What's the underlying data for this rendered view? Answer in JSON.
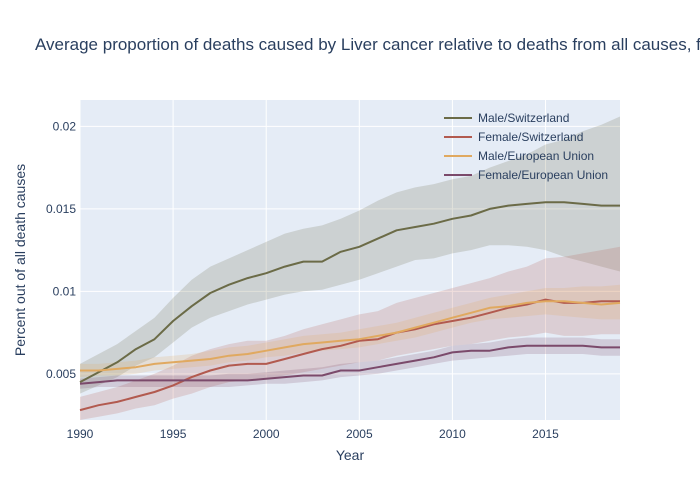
{
  "chart_data": {
    "type": "line",
    "title": "Average proportion of deaths caused by Liver cancer relative to deaths from all causes, f",
    "xlabel": "Year",
    "ylabel": "Percent out of all death causes",
    "xlim": [
      1990,
      2019
    ],
    "ylim": [
      0.0022,
      0.0216
    ],
    "x_ticks": [
      1990,
      1995,
      2000,
      2005,
      2010,
      2015
    ],
    "y_ticks": [
      0.005,
      0.01,
      0.015,
      0.02
    ],
    "y_tick_labels": [
      "0.005",
      "0.01",
      "0.015",
      "0.02"
    ],
    "grid": true,
    "legend_position": "top-right",
    "x": [
      1990,
      1991,
      1992,
      1993,
      1994,
      1995,
      1996,
      1997,
      1998,
      1999,
      2000,
      2001,
      2002,
      2003,
      2004,
      2005,
      2006,
      2007,
      2008,
      2009,
      2010,
      2011,
      2012,
      2013,
      2014,
      2015,
      2016,
      2017,
      2018,
      2019
    ],
    "series": [
      {
        "name": "Male/Switzerland",
        "color": "#6b6b47",
        "values": [
          0.0045,
          0.0051,
          0.0057,
          0.0065,
          0.0071,
          0.0082,
          0.0091,
          0.0099,
          0.0104,
          0.0108,
          0.0111,
          0.0115,
          0.0118,
          0.0118,
          0.0124,
          0.0127,
          0.0132,
          0.0137,
          0.0139,
          0.0141,
          0.0144,
          0.0146,
          0.015,
          0.0152,
          0.0153,
          0.0154,
          0.0154,
          0.0153,
          0.0152,
          0.0152
        ],
        "lower": [
          0.0038,
          0.0043,
          0.0048,
          0.0055,
          0.006,
          0.0069,
          0.0078,
          0.0084,
          0.0088,
          0.0092,
          0.0095,
          0.0098,
          0.01,
          0.0101,
          0.0104,
          0.0107,
          0.0111,
          0.0115,
          0.0119,
          0.012,
          0.0123,
          0.0125,
          0.0128,
          0.0128,
          0.0127,
          0.0125,
          0.0121,
          0.0118,
          0.0115,
          0.0112
        ],
        "upper": [
          0.0056,
          0.0062,
          0.0068,
          0.0076,
          0.0084,
          0.0096,
          0.0107,
          0.0115,
          0.012,
          0.0125,
          0.013,
          0.0135,
          0.0138,
          0.014,
          0.0144,
          0.0149,
          0.0155,
          0.016,
          0.0163,
          0.0165,
          0.0168,
          0.017,
          0.0175,
          0.0179,
          0.0183,
          0.0189,
          0.0192,
          0.0197,
          0.0201,
          0.0206
        ]
      },
      {
        "name": "Female/Switzerland",
        "color": "#b25a4f",
        "values": [
          0.0028,
          0.0031,
          0.0033,
          0.0036,
          0.0039,
          0.0043,
          0.0048,
          0.0052,
          0.0055,
          0.0056,
          0.0056,
          0.0059,
          0.0062,
          0.0065,
          0.0067,
          0.007,
          0.0071,
          0.0075,
          0.0077,
          0.008,
          0.0082,
          0.0084,
          0.0087,
          0.009,
          0.0092,
          0.0095,
          0.0093,
          0.0093,
          0.0094,
          0.0094
        ],
        "lower": [
          0.0022,
          0.0024,
          0.0026,
          0.0029,
          0.0031,
          0.0035,
          0.0038,
          0.0042,
          0.0045,
          0.0046,
          0.0047,
          0.0049,
          0.0051,
          0.0053,
          0.0055,
          0.0057,
          0.0058,
          0.0061,
          0.0063,
          0.0065,
          0.0067,
          0.0068,
          0.007,
          0.0072,
          0.0073,
          0.0075,
          0.0073,
          0.0073,
          0.0074,
          0.0074
        ],
        "upper": [
          0.0036,
          0.0039,
          0.0042,
          0.0046,
          0.005,
          0.0055,
          0.0061,
          0.0065,
          0.0068,
          0.007,
          0.007,
          0.0073,
          0.0077,
          0.008,
          0.0083,
          0.0086,
          0.0088,
          0.0093,
          0.0096,
          0.0099,
          0.0102,
          0.0105,
          0.0108,
          0.0112,
          0.0115,
          0.012,
          0.0121,
          0.0123,
          0.0125,
          0.0127
        ]
      },
      {
        "name": "Male/European Union",
        "color": "#e0a960",
        "values": [
          0.0052,
          0.0052,
          0.0053,
          0.0054,
          0.0056,
          0.0057,
          0.0058,
          0.0059,
          0.0061,
          0.0062,
          0.0064,
          0.0066,
          0.0068,
          0.0069,
          0.007,
          0.0071,
          0.0073,
          0.0075,
          0.0078,
          0.0081,
          0.0084,
          0.0087,
          0.009,
          0.0091,
          0.0093,
          0.0094,
          0.0094,
          0.0093,
          0.0092,
          0.0093
        ],
        "lower": [
          0.0048,
          0.0049,
          0.0049,
          0.005,
          0.0052,
          0.0053,
          0.0054,
          0.0055,
          0.0057,
          0.0058,
          0.006,
          0.0061,
          0.0063,
          0.0064,
          0.0065,
          0.0066,
          0.0068,
          0.007,
          0.0072,
          0.0075,
          0.0078,
          0.0081,
          0.0083,
          0.0084,
          0.0085,
          0.0086,
          0.0085,
          0.0084,
          0.0083,
          0.0083
        ],
        "upper": [
          0.0056,
          0.0056,
          0.0057,
          0.0058,
          0.006,
          0.0061,
          0.0062,
          0.0064,
          0.0066,
          0.0067,
          0.0069,
          0.0071,
          0.0073,
          0.0074,
          0.0075,
          0.0077,
          0.0079,
          0.0081,
          0.0084,
          0.0087,
          0.009,
          0.0093,
          0.0096,
          0.0098,
          0.01,
          0.0102,
          0.0102,
          0.0103,
          0.0103,
          0.0104
        ]
      },
      {
        "name": "Female/European Union",
        "color": "#7b4a6b",
        "values": [
          0.0044,
          0.0045,
          0.0046,
          0.0046,
          0.0046,
          0.0046,
          0.0046,
          0.0046,
          0.0046,
          0.0046,
          0.0047,
          0.0048,
          0.0049,
          0.0049,
          0.0052,
          0.0052,
          0.0054,
          0.0056,
          0.0058,
          0.006,
          0.0063,
          0.0064,
          0.0064,
          0.0066,
          0.0067,
          0.0067,
          0.0067,
          0.0067,
          0.0066,
          0.0066
        ],
        "lower": [
          0.0041,
          0.0042,
          0.0042,
          0.0042,
          0.0042,
          0.0042,
          0.0042,
          0.0042,
          0.0042,
          0.0043,
          0.0044,
          0.0044,
          0.0045,
          0.0046,
          0.0048,
          0.0049,
          0.005,
          0.0052,
          0.0054,
          0.0056,
          0.0058,
          0.0059,
          0.006,
          0.0061,
          0.0062,
          0.0062,
          0.0062,
          0.0062,
          0.0061,
          0.0061
        ],
        "upper": [
          0.0047,
          0.0048,
          0.0049,
          0.0049,
          0.0049,
          0.0049,
          0.0049,
          0.0049,
          0.005,
          0.005,
          0.0051,
          0.0052,
          0.0053,
          0.0054,
          0.0056,
          0.0057,
          0.0058,
          0.006,
          0.0062,
          0.0064,
          0.0067,
          0.0068,
          0.0069,
          0.0071,
          0.0072,
          0.0072,
          0.0072,
          0.0072,
          0.0071,
          0.0071
        ]
      }
    ]
  }
}
